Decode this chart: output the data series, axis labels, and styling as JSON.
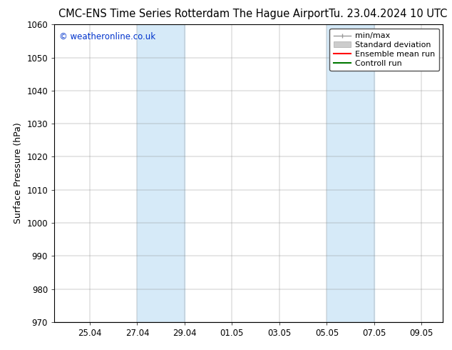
{
  "title_left": "CMC-ENS Time Series Rotterdam The Hague Airport",
  "title_right": "Tu. 23.04.2024 10 UTC",
  "ylabel": "Surface Pressure (hPa)",
  "ylim": [
    970,
    1060
  ],
  "yticks": [
    970,
    980,
    990,
    1000,
    1010,
    1020,
    1030,
    1040,
    1050,
    1060
  ],
  "xtick_labels": [
    "25.04",
    "27.04",
    "29.04",
    "01.05",
    "03.05",
    "05.05",
    "07.05",
    "09.05"
  ],
  "xtick_positions": [
    2,
    4,
    6,
    8,
    10,
    12,
    14,
    16
  ],
  "xlim": [
    0.5,
    16.9
  ],
  "shaded_bands": [
    {
      "x_start": 4,
      "x_end": 6,
      "color": "#d6eaf8"
    },
    {
      "x_start": 12,
      "x_end": 14,
      "color": "#d6eaf8"
    }
  ],
  "copyright_text": "© weatheronline.co.uk",
  "copyright_color": "#0033cc",
  "background_color": "#ffffff",
  "title_fontsize": 10.5,
  "tick_fontsize": 8.5,
  "legend_fontsize": 8,
  "ylabel_fontsize": 9
}
